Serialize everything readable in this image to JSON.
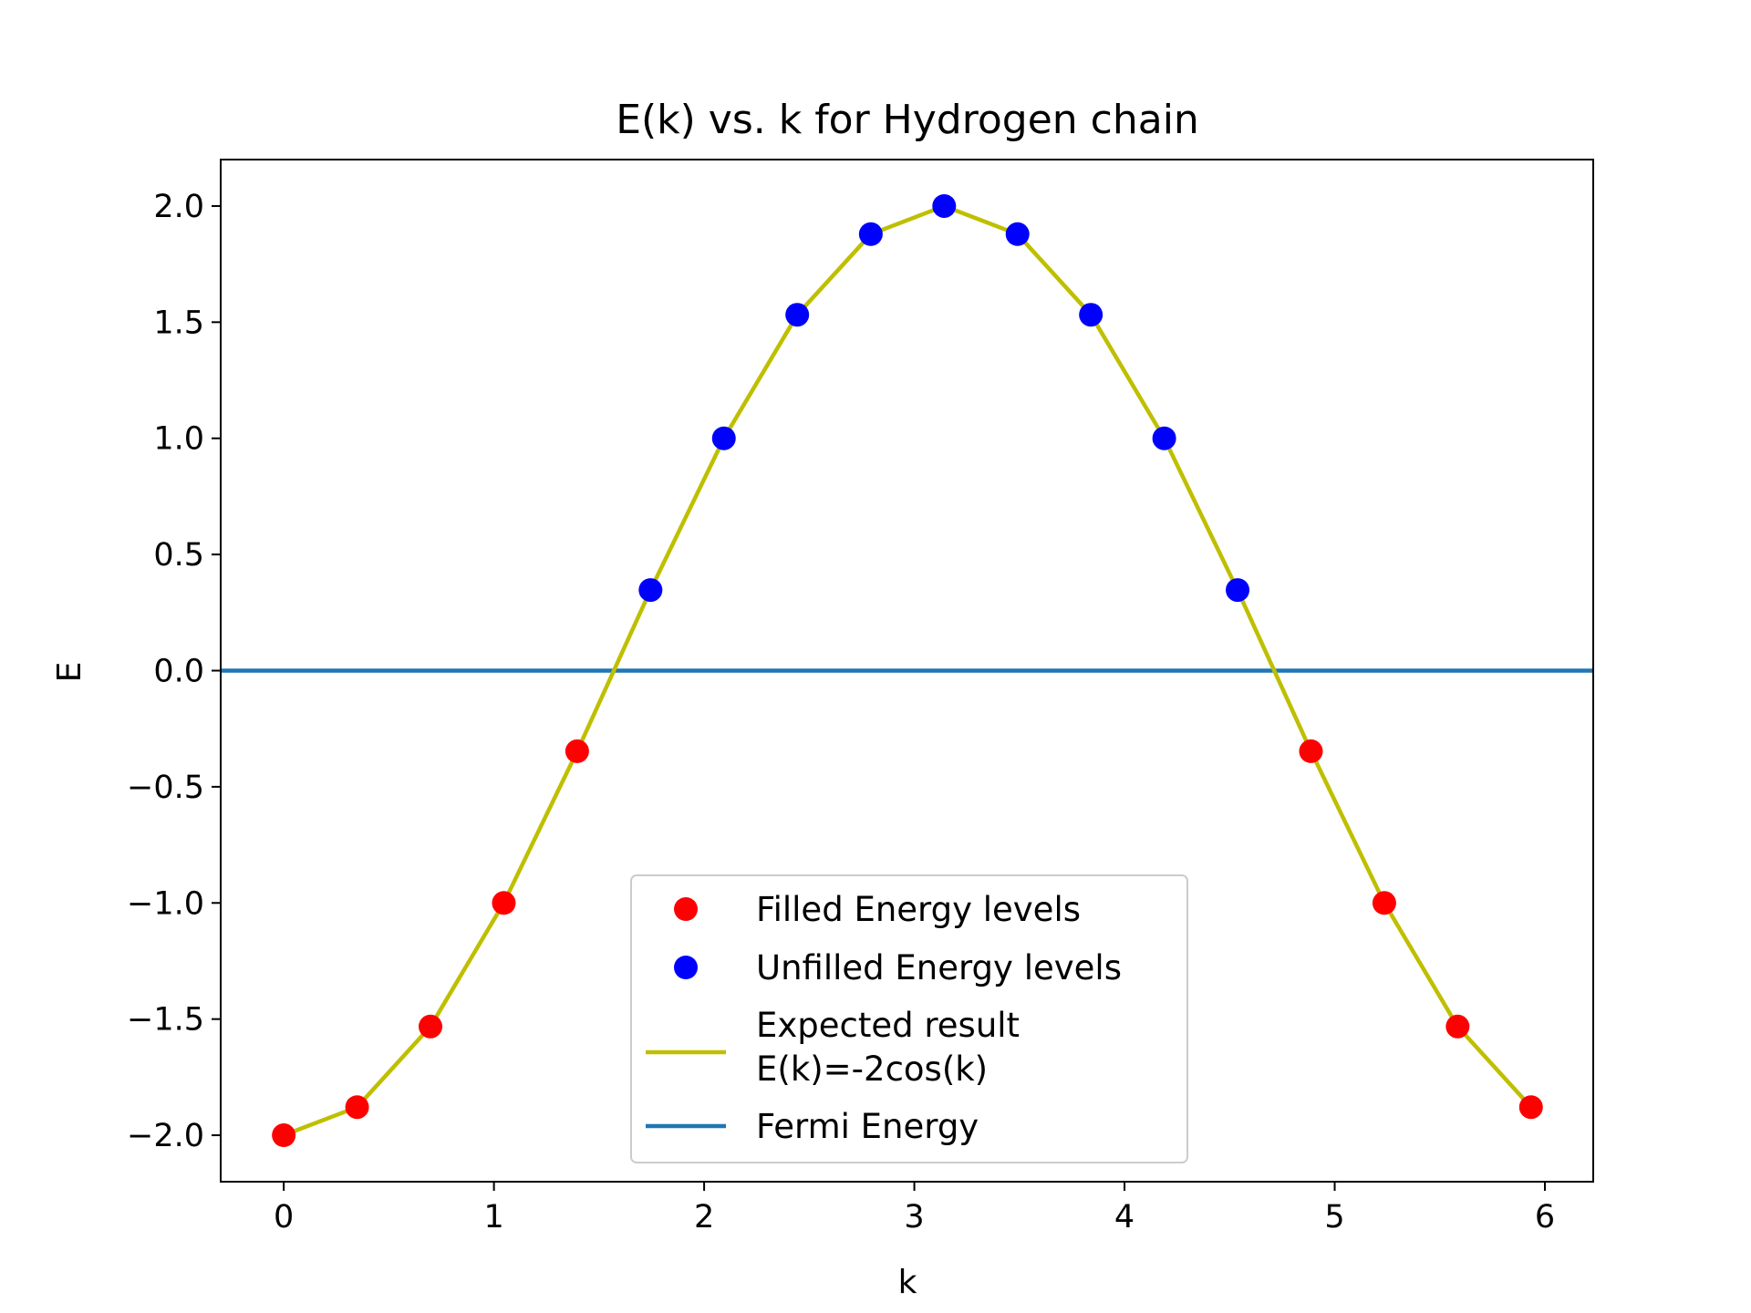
{
  "chart_data": {
    "type": "scatter",
    "title": "E(k) vs. k for Hydrogen chain",
    "xlabel": "k",
    "ylabel": "E",
    "xlim": [
      -0.3,
      6.23
    ],
    "ylim": [
      -2.2,
      2.2
    ],
    "xticks": [
      0,
      1,
      2,
      3,
      4,
      5,
      6
    ],
    "xtick_labels": [
      "0",
      "1",
      "2",
      "3",
      "4",
      "5",
      "6"
    ],
    "yticks": [
      -2.0,
      -1.5,
      -1.0,
      -0.5,
      0.0,
      0.5,
      1.0,
      1.5,
      2.0
    ],
    "ytick_labels": [
      "−2.0",
      "−1.5",
      "−1.0",
      "−0.5",
      "0.0",
      "0.5",
      "1.0",
      "1.5",
      "2.0"
    ],
    "grid": false,
    "legend_position": "bottom-center",
    "series": [
      {
        "name": "Filled Energy levels",
        "kind": "scatter",
        "color": "#ff0000",
        "x": [
          0.0,
          0.349,
          0.698,
          1.047,
          1.396,
          4.887,
          5.236,
          5.585,
          5.934
        ],
        "y": [
          -2.0,
          -1.879,
          -1.532,
          -1.0,
          -0.347,
          -0.347,
          -1.0,
          -1.532,
          -1.879
        ]
      },
      {
        "name": "Unfilled Energy levels",
        "kind": "scatter",
        "color": "#0000ff",
        "x": [
          1.745,
          2.094,
          2.443,
          2.793,
          3.142,
          3.491,
          3.84,
          4.189,
          4.538
        ],
        "y": [
          0.347,
          1.0,
          1.532,
          1.879,
          2.0,
          1.879,
          1.532,
          1.0,
          0.347
        ]
      },
      {
        "name": "Expected result\n E(k)=-2cos(k)",
        "name_lines": [
          "Expected result",
          " E(k)=-2cos(k)"
        ],
        "kind": "line",
        "color": "#bfbf00",
        "x": [
          0.0,
          0.349,
          0.698,
          1.047,
          1.396,
          1.745,
          2.094,
          2.443,
          2.793,
          3.142,
          3.491,
          3.84,
          4.189,
          4.538,
          4.887,
          5.236,
          5.585,
          5.934
        ],
        "y": [
          -2.0,
          -1.879,
          -1.532,
          -1.0,
          -0.347,
          0.347,
          1.0,
          1.532,
          1.879,
          2.0,
          1.879,
          1.532,
          1.0,
          0.347,
          -0.347,
          -1.0,
          -1.532,
          -1.879
        ]
      },
      {
        "name": "Fermi Energy",
        "kind": "hline",
        "color": "#1f77b4",
        "y": 0.0
      }
    ]
  }
}
